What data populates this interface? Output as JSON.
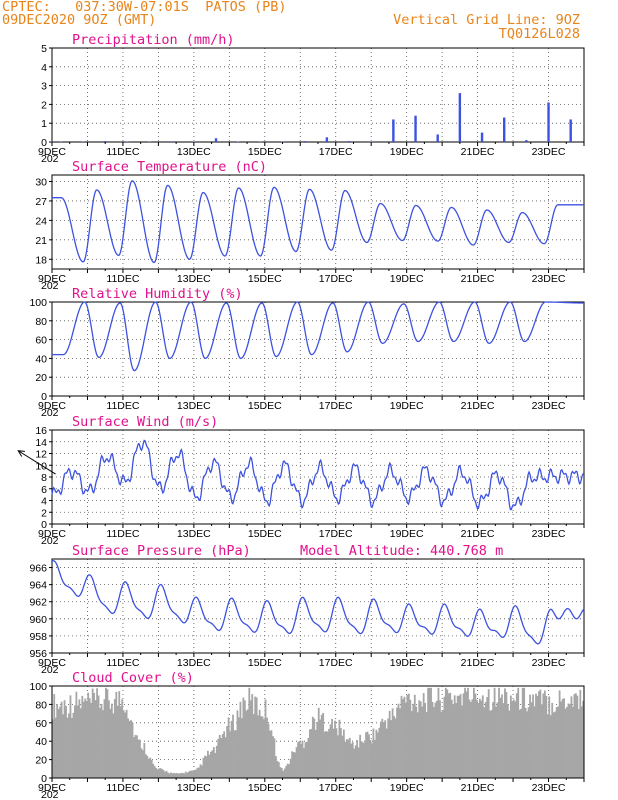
{
  "header": {
    "left_line1": "CPTEC:   037:30W-07:01S  PATOS (PB)",
    "left_line2": "09DEC2020 9OZ (GMT)",
    "right_line1": "Vertical Grid Line: 9OZ",
    "right_line2": "TQ0126L028"
  },
  "colors": {
    "header_text": "#e8841a",
    "panel_title": "#e0128c",
    "series_line": "#3d52e0",
    "wind_arrows": "#000000",
    "cloud_fill": "#a6a6a6"
  },
  "chart_data": [
    {
      "id": "precipitation",
      "type": "bar",
      "title": "Precipitation (mm/h)",
      "ylim": [
        0,
        5
      ],
      "yticks": [
        0,
        1,
        2,
        3,
        4,
        5
      ],
      "x": [
        "09DEC 01Z",
        "09DEC 15Z",
        "10DEC 06Z",
        "10DEC 21Z",
        "11DEC 12Z",
        "12DEC 03Z",
        "12DEC 18Z",
        "13DEC 09Z",
        "14DEC 00Z",
        "14DEC 15Z",
        "15DEC 06Z",
        "15DEC 21Z",
        "16DEC 12Z",
        "17DEC 03Z",
        "17DEC 18Z",
        "18DEC 09Z",
        "19DEC 00Z",
        "19DEC 15Z",
        "20DEC 06Z",
        "20DEC 21Z",
        "21DEC 12Z",
        "22DEC 03Z",
        "22DEC 18Z",
        "23DEC 09Z",
        "24DEC 00Z"
      ],
      "values": [
        0.02,
        0.03,
        0.02,
        0.05,
        0.03,
        0.02,
        0.04,
        0.02,
        0.2,
        0.03,
        0.02,
        0.03,
        0.05,
        0.25,
        0.05,
        0.02,
        1.2,
        1.4,
        0.4,
        2.6,
        0.5,
        1.3,
        0.1,
        2.1,
        1.2
      ]
    },
    {
      "id": "temperature",
      "type": "line",
      "title": "Surface Temperature (nC)",
      "ylim": [
        16.5,
        31
      ],
      "yticks": [
        18,
        21,
        24,
        27,
        30
      ],
      "daily_max": [
        27.5,
        28.7,
        30.1,
        29.4,
        28.3,
        29.0,
        29.1,
        28.8,
        28.6,
        26.6,
        26.3,
        26.0,
        25.6,
        25.2,
        26.4
      ],
      "daily_min": [
        17.6,
        18.6,
        17.5,
        18.0,
        18.5,
        18.5,
        19.2,
        19.4,
        20.6,
        20.9,
        20.8,
        20.2,
        20.6,
        20.4
      ]
    },
    {
      "id": "humidity",
      "type": "line",
      "title": "Relative Humidity (%)",
      "ylim": [
        0,
        100
      ],
      "yticks": [
        0,
        20,
        40,
        60,
        80,
        100
      ],
      "daily_max": [
        100,
        99,
        100,
        100,
        99,
        99,
        100,
        99,
        100,
        98,
        100,
        100,
        100,
        100,
        99
      ],
      "daily_min": [
        44,
        41,
        27,
        40,
        40,
        40,
        42,
        44,
        47,
        56,
        58,
        58,
        56,
        58
      ]
    },
    {
      "id": "wind",
      "type": "line",
      "title": "Surface Wind (m/s)",
      "ylim": [
        0,
        16
      ],
      "yticks": [
        0,
        2,
        4,
        6,
        8,
        10,
        12,
        14,
        16
      ],
      "daily_max": [
        9.0,
        11.5,
        14.0,
        12.0,
        10.5,
        10.2,
        10.0,
        9.5,
        9.5,
        9.0,
        9.2,
        8.8,
        8.5,
        8.0,
        8.2
      ],
      "daily_min": [
        5.0,
        5.5,
        7.0,
        6.0,
        4.5,
        4.5,
        4.0,
        4.0,
        4.5,
        4.0,
        4.5,
        4.0,
        3.5,
        3.0
      ]
    },
    {
      "id": "pressure",
      "type": "line",
      "title": "Surface Pressure (hPa)",
      "annotation": "Model Altitude: 440.768 m",
      "ylim": [
        956,
        967
      ],
      "yticks": [
        956,
        958,
        960,
        962,
        964,
        966
      ],
      "daily_max": [
        966.2,
        964.6,
        963.8,
        963.5,
        962.0,
        961.9,
        961.6,
        962.0,
        962.0,
        961.8,
        961.2,
        961.2,
        960.6,
        961.0,
        960.6
      ],
      "daily_min": [
        962.8,
        960.6,
        960.0,
        959.6,
        958.6,
        958.4,
        958.2,
        958.4,
        958.2,
        958.4,
        958.2,
        958.0,
        957.8,
        957.0
      ]
    },
    {
      "id": "cloud",
      "type": "area",
      "title": "Cloud Cover (%)",
      "ylim": [
        0,
        100
      ],
      "yticks": [
        0,
        20,
        40,
        60,
        80,
        100
      ],
      "x": [
        "09DEC 00Z",
        "10DEC 00Z",
        "10DEC 12Z",
        "11DEC 00Z",
        "11DEC 12Z",
        "12DEC 00Z",
        "12DEC 12Z",
        "13DEC 00Z",
        "13DEC 12Z",
        "14DEC 00Z",
        "14DEC 12Z",
        "15DEC 00Z",
        "15DEC 12Z",
        "16DEC 00Z",
        "16DEC 12Z",
        "17DEC 00Z",
        "17DEC 12Z",
        "18DEC 00Z",
        "18DEC 12Z",
        "19DEC 00Z",
        "20DEC 00Z",
        "21DEC 00Z",
        "22DEC 00Z",
        "23DEC 00Z",
        "24DEC 00Z"
      ],
      "values": [
        85,
        88,
        90,
        92,
        40,
        10,
        5,
        8,
        30,
        60,
        90,
        80,
        10,
        40,
        70,
        60,
        40,
        50,
        70,
        92,
        95,
        98,
        95,
        90,
        95
      ]
    }
  ],
  "x_axis": {
    "labels": [
      "9DEC",
      "11DEC",
      "13DEC",
      "15DEC",
      "17DEC",
      "19DEC",
      "21DEC",
      "23DEC"
    ],
    "year_fragment": "202"
  }
}
